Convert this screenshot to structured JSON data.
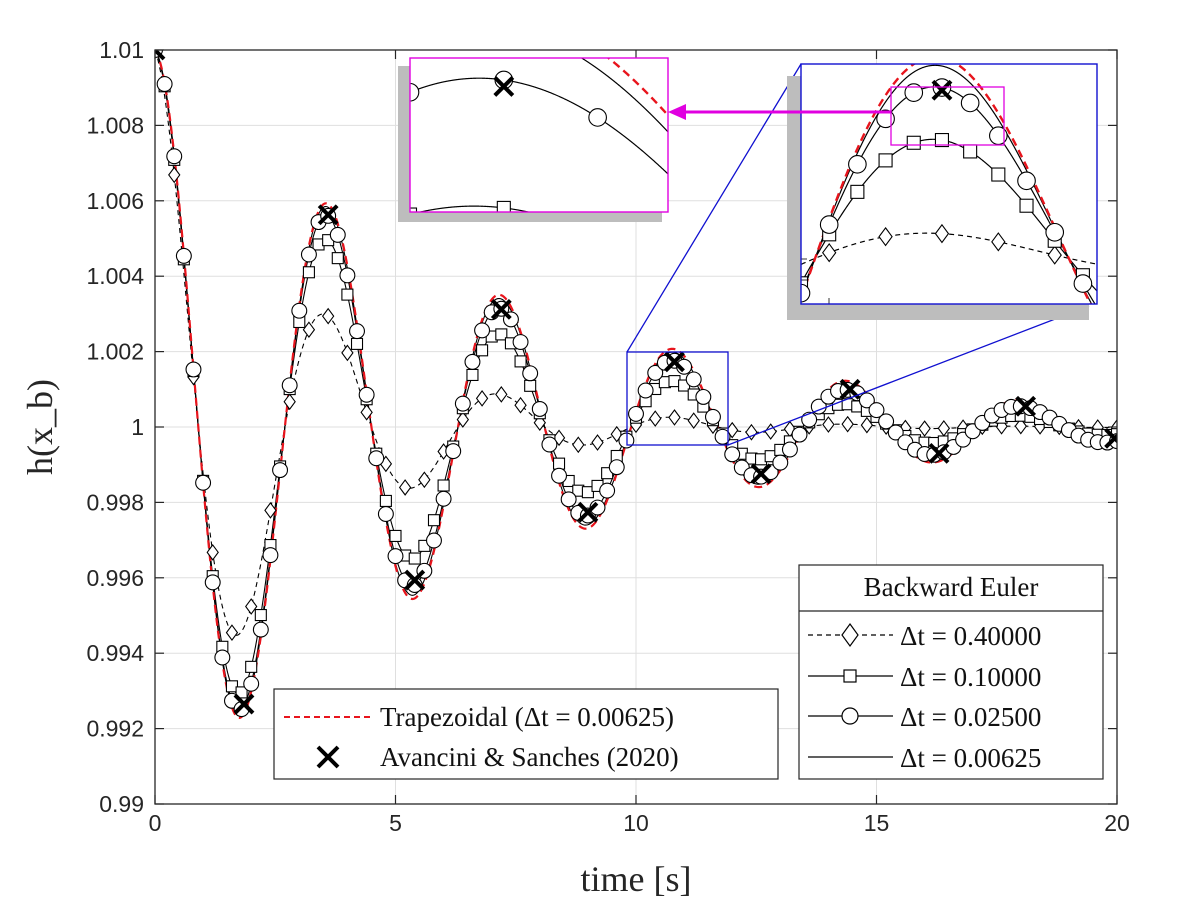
{
  "chart_data": {
    "type": "line",
    "title": "",
    "xlabel": "time [s]",
    "ylabel": "h(x_b)",
    "xlim": [
      0,
      20
    ],
    "ylim": [
      0.99,
      1.01
    ],
    "grid": true,
    "x_ticks": [
      0,
      5,
      10,
      15,
      20
    ],
    "x_tick_labels": [
      "0",
      "5",
      "10",
      "15",
      "20"
    ],
    "y_ticks": [
      0.99,
      0.992,
      0.994,
      0.996,
      0.998,
      1.0,
      1.002,
      1.004,
      1.006,
      1.008,
      1.01
    ],
    "y_tick_labels": [
      "0.99",
      "0.992",
      "0.994",
      "0.996",
      "0.998",
      "1",
      "1.002",
      "1.004",
      "1.006",
      "1.008",
      "1.01"
    ],
    "signal_model": {
      "form": "1 + amplitude * exp(-decay * t) * cos(2*pi*t/period)",
      "amplitude": 0.01,
      "period": 3.6
    },
    "series": [
      {
        "name": "Trapezoidal (Δt = 0.00625)",
        "style": "dashed",
        "color": "#e8141c",
        "marker": "none",
        "decay": 0.146
      },
      {
        "name": "Δt = 0.40000",
        "group": "Backward Euler",
        "style": "dashed",
        "color": "#000000",
        "marker": "diamond",
        "marker_dt": 0.4,
        "decay": 0.34
      },
      {
        "name": "Δt = 0.10000",
        "group": "Backward Euler",
        "style": "solid",
        "color": "#000000",
        "marker": "square",
        "marker_dt": 0.2,
        "decay": 0.195
      },
      {
        "name": "Δt = 0.02500",
        "group": "Backward Euler",
        "style": "solid",
        "color": "#000000",
        "marker": "circle",
        "marker_dt": 0.2,
        "decay": 0.161
      },
      {
        "name": "Δt = 0.00625",
        "group": "Backward Euler",
        "style": "solid",
        "color": "#000000",
        "marker": "none",
        "decay": 0.15
      }
    ],
    "reference_points": {
      "name": "Avancini & Sanches (2020)",
      "marker": "x",
      "points": [
        [
          0.0,
          1.01
        ],
        [
          1.85,
          0.99265
        ],
        [
          3.6,
          1.00563
        ],
        [
          5.4,
          0.99594
        ],
        [
          7.2,
          1.00312
        ],
        [
          9.0,
          0.99774
        ],
        [
          10.8,
          1.00173
        ],
        [
          12.6,
          0.99876
        ],
        [
          14.45,
          1.001
        ],
        [
          16.3,
          0.9993
        ],
        [
          18.1,
          1.00055
        ],
        [
          19.95,
          0.9997
        ]
      ]
    },
    "legend_lower": {
      "entries": [
        "Trapezoidal (Δt = 0.00625)",
        "Avancini & Sanches (2020)"
      ],
      "placement": "bottom-center"
    },
    "legend_right": {
      "title": "Backward Euler",
      "entries": [
        "Δt = 0.40000",
        "Δt = 0.10000",
        "Δt = 0.02500",
        "Δt = 0.00625"
      ],
      "placement": "bottom-right"
    },
    "zoom_regions": [
      {
        "name": "zoom-main",
        "color": "#1010d0",
        "xlim": [
          9.8,
          11.9
        ],
        "ylim": [
          0.99953,
          1.002
        ]
      },
      {
        "name": "zoom-detail",
        "color": "#e000e0",
        "xlim": [
          10.6,
          11.15
        ],
        "ylim": [
          1.0012,
          1.00185
        ]
      }
    ]
  }
}
